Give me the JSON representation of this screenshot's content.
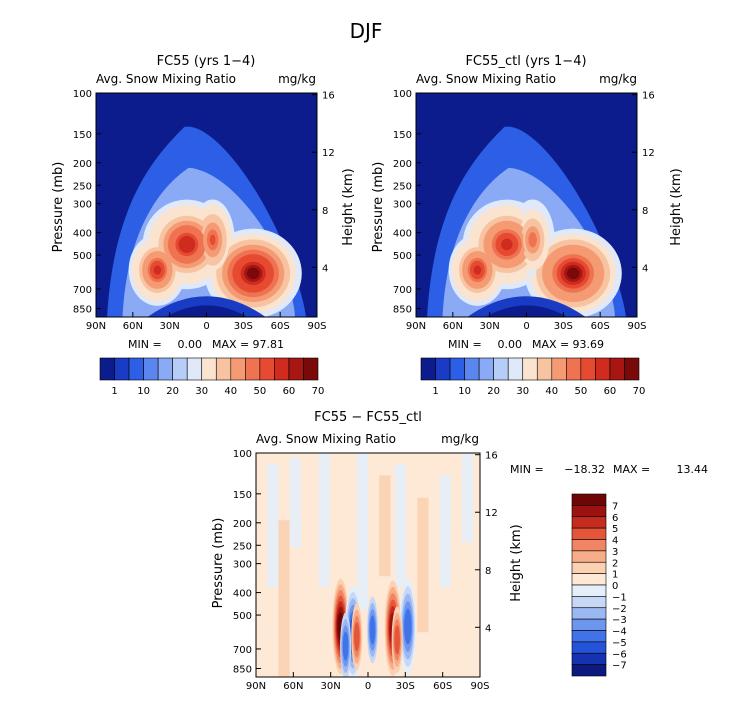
{
  "page": {
    "title": "DJF"
  },
  "palettes": {
    "levels_main": [
      "#0c1c8c",
      "#1a3cc4",
      "#2c5fe6",
      "#5b86f0",
      "#8aaaf5",
      "#b6cdf7",
      "#dfe9f9",
      "#fbe4cf",
      "#f8c3a1",
      "#f49b73",
      "#ef7351",
      "#e64b32",
      "#cf2b1f",
      "#a81614",
      "#7a0a0a"
    ],
    "levels_diff": [
      "#0c1a80",
      "#1532b0",
      "#2553d8",
      "#4173e8",
      "#6d96ef",
      "#9bb8f3",
      "#c6d8f6",
      "#e5eef9",
      "#fde9d6",
      "#fbd1b2",
      "#f7ad89",
      "#f18462",
      "#e4553a",
      "#c52c1e",
      "#9b1210",
      "#6e0606"
    ]
  },
  "chart_data": [
    {
      "type": "heatmap",
      "title": "FC55 (yrs 1−4)",
      "subtitle_left": "Avg. Snow Mixing Ratio",
      "subtitle_right": "mg/kg",
      "xlabel": "",
      "ylabel": "Pressure (mb)",
      "ylabel_right": "Height (km)",
      "x_ticks": [
        "90N",
        "60N",
        "30N",
        "0",
        "30S",
        "60S",
        "90S"
      ],
      "x_tick_values": [
        90,
        60,
        30,
        0,
        -30,
        -60,
        -90
      ],
      "y_ticks": [
        100,
        150,
        200,
        250,
        300,
        400,
        500,
        700,
        850
      ],
      "y_range": [
        100,
        925
      ],
      "y_scale": "log",
      "height_ticks": [
        16,
        12,
        8,
        4
      ],
      "min_label": "MIN =",
      "min_value": "0.00",
      "max_label": "MAX =",
      "max_value": "97.81",
      "colorbar_labels": [
        "1",
        "10",
        "20",
        "30",
        "40",
        "50",
        "60",
        "70"
      ],
      "features": [
        {
          "lat": 16,
          "p": 450,
          "value": 75
        },
        {
          "lat": -38,
          "p": 600,
          "value": 95
        },
        {
          "lat": 40,
          "p": 580,
          "value": 70
        },
        {
          "lat": -5,
          "p": 430,
          "value": 55
        }
      ]
    },
    {
      "type": "heatmap",
      "title": "FC55_ctl (yrs 1−4)",
      "subtitle_left": "Avg. Snow Mixing Ratio",
      "subtitle_right": "mg/kg",
      "xlabel": "",
      "ylabel": "Pressure (mb)",
      "ylabel_right": "Height (km)",
      "x_ticks": [
        "90N",
        "60N",
        "30N",
        "0",
        "30S",
        "60S",
        "90S"
      ],
      "x_tick_values": [
        90,
        60,
        30,
        0,
        -30,
        -60,
        -90
      ],
      "y_ticks": [
        100,
        150,
        200,
        250,
        300,
        400,
        500,
        700,
        850
      ],
      "y_range": [
        100,
        925
      ],
      "y_scale": "log",
      "height_ticks": [
        16,
        12,
        8,
        4
      ],
      "min_label": "MIN =",
      "min_value": "0.00",
      "max_label": "MAX =",
      "max_value": "93.69",
      "colorbar_labels": [
        "1",
        "10",
        "20",
        "30",
        "40",
        "50",
        "60",
        "70"
      ],
      "features": [
        {
          "lat": 16,
          "p": 450,
          "value": 72
        },
        {
          "lat": -38,
          "p": 600,
          "value": 90
        },
        {
          "lat": 40,
          "p": 580,
          "value": 68
        },
        {
          "lat": -5,
          "p": 430,
          "value": 52
        }
      ]
    },
    {
      "type": "heatmap",
      "title": "FC55 − FC55_ctl",
      "subtitle_left": "Avg. Snow Mixing Ratio",
      "subtitle_right": "mg/kg",
      "xlabel": "",
      "ylabel": "Pressure (mb)",
      "ylabel_right": "Height (km)",
      "x_ticks": [
        "90N",
        "60N",
        "30N",
        "0",
        "30S",
        "60S",
        "90S"
      ],
      "x_tick_values": [
        90,
        60,
        30,
        0,
        -30,
        -60,
        -90
      ],
      "y_ticks": [
        100,
        150,
        200,
        250,
        300,
        400,
        500,
        700,
        850
      ],
      "y_range": [
        100,
        925
      ],
      "y_scale": "log",
      "height_ticks": [
        16,
        12,
        8,
        4
      ],
      "min_label": "MIN =",
      "min_value": "−18.32",
      "max_label": "MAX =",
      "max_value": "13.44",
      "colorbar_labels": [
        "7",
        "6",
        "5",
        "4",
        "3",
        "2",
        "1",
        "0",
        "−1",
        "−2",
        "−3",
        "−4",
        "−5",
        "−6",
        "−7"
      ],
      "features": [
        {
          "lat": 22,
          "p": 560,
          "value": 7
        },
        {
          "lat": 12,
          "p": 600,
          "value": -6
        },
        {
          "lat": -20,
          "p": 570,
          "value": 6
        },
        {
          "lat": -32,
          "p": 560,
          "value": -5
        }
      ]
    }
  ]
}
